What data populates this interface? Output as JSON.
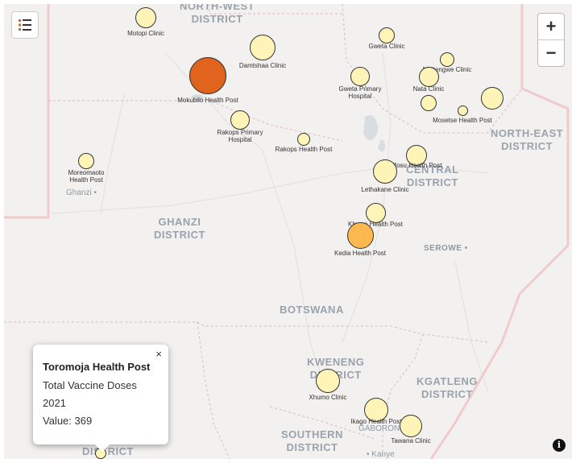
{
  "districts": [
    {
      "id": "north-west",
      "lines": [
        "NORTH-WEST",
        "DISTRICT"
      ]
    },
    {
      "id": "ghanzi",
      "lines": [
        "GHANZI",
        "DISTRICT"
      ]
    },
    {
      "id": "central",
      "lines": [
        "CENTRAL",
        "DISTRICT"
      ]
    },
    {
      "id": "north-east",
      "lines": [
        "NORTH-EAST",
        "DISTRICT"
      ]
    },
    {
      "id": "kweneng",
      "lines": [
        "KWENENG",
        "DISTRICT"
      ]
    },
    {
      "id": "kgatleng",
      "lines": [
        "KGATLENG",
        "DISTRICT"
      ]
    },
    {
      "id": "southern",
      "lines": [
        "SOUTHERN",
        "DISTRICT"
      ]
    },
    {
      "id": "southern-partial",
      "lines": [
        "DISTRICT"
      ]
    }
  ],
  "country_label": "BOTSWANA",
  "towns": [
    {
      "id": "ghanzi",
      "label": "Ghanzi"
    },
    {
      "id": "serowe",
      "label": "SEROWE"
    },
    {
      "id": "gaborone",
      "label": "GABORONE"
    },
    {
      "id": "kanye",
      "label": "Kanye"
    }
  ],
  "markers": [
    {
      "id": "motopi",
      "label": "Motopi Clinic",
      "color": "#fff4b8",
      "level": "low"
    },
    {
      "id": "damtshaa",
      "label": "Damtshaa Clinic",
      "color": "#fff4b8",
      "level": "low"
    },
    {
      "id": "mokubilo",
      "label": "Mokubilo Health Post",
      "color": "#e0641e",
      "level": "high"
    },
    {
      "id": "gweta-clinic",
      "label": "Gweta Clinic",
      "color": "#fff4b8",
      "level": "low"
    },
    {
      "id": "gweta-primary",
      "label": "Gweta Primary\nHospital",
      "color": "#fff4b8",
      "level": "low"
    },
    {
      "id": "maitengwe",
      "label": "Maitengwe Clinic",
      "color": "#fff4b8",
      "level": "low"
    },
    {
      "id": "nata",
      "label": "Nata Clinic",
      "color": "#fff4b8",
      "level": "low"
    },
    {
      "id": "nata-2",
      "label": "",
      "color": "#fff4b8",
      "level": "low"
    },
    {
      "id": "mosetse",
      "label": "Mosetse Health Post",
      "color": "#fff4b8",
      "level": "low"
    },
    {
      "id": "ne-clinic",
      "label": "",
      "color": "#fff4b8",
      "level": "low"
    },
    {
      "id": "rakops-primary",
      "label": "Rakops Primary\nHospital",
      "color": "#fff4b8",
      "level": "low"
    },
    {
      "id": "rakops-hp",
      "label": "Rakops Health Post",
      "color": "#fff4b8",
      "level": "low"
    },
    {
      "id": "moreomaoto",
      "label": "Moreomaoto\nHealth Post",
      "color": "#fff4b8",
      "level": "low"
    },
    {
      "id": "mosu",
      "label": "Mosu Health Post",
      "color": "#fff4b8",
      "level": "low"
    },
    {
      "id": "lethakane",
      "label": "Lethakane Clinic",
      "color": "#fff4b8",
      "level": "low"
    },
    {
      "id": "mosu-2",
      "label": "",
      "color": "#fff4b8",
      "level": "low"
    },
    {
      "id": "khwee",
      "label": "Khwee Health Post",
      "color": "#fff4b8",
      "level": "low"
    },
    {
      "id": "kedia",
      "label": "Kedia Health Post",
      "color": "#fdb84f",
      "level": "medium"
    },
    {
      "id": "xhumo",
      "label": "Xhumo Clinic",
      "color": "#fff4b8",
      "level": "low"
    },
    {
      "id": "ikago",
      "label": "Ikago Health Post",
      "color": "#fff4b8",
      "level": "low"
    },
    {
      "id": "tawana",
      "label": "Tawana Clinic",
      "color": "#fff4b8",
      "level": "low"
    },
    {
      "id": "toromoja",
      "label": "",
      "color": "#fff4b8",
      "level": "low"
    }
  ],
  "popup": {
    "title": "Toromoja Health Post",
    "metric": "Total Vaccine Doses",
    "year": "2021",
    "value_text": "Value: 369",
    "close_symbol": "×"
  },
  "controls": {
    "zoom_in": "+",
    "zoom_out": "−",
    "info_symbol": "i"
  }
}
